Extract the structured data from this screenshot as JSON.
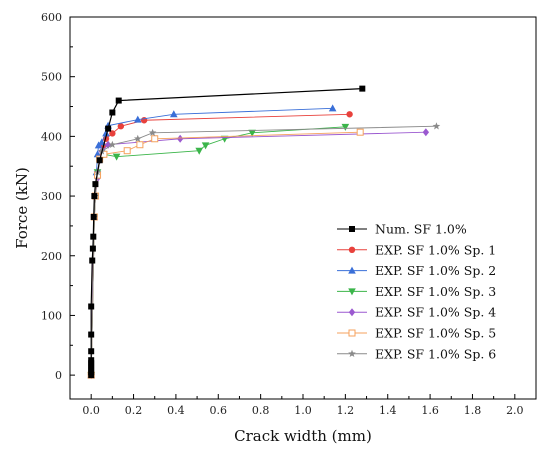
{
  "chart_data": {
    "type": "line",
    "xlabel": "Crack width (mm)",
    "ylabel": "Force (kN)",
    "xlim": [
      -0.1,
      2.1
    ],
    "ylim": [
      -40,
      600
    ],
    "xticks": [
      "0.0",
      "0.2",
      "0.4",
      "0.6",
      "0.8",
      "1.0",
      "1.2",
      "1.4",
      "1.6",
      "1.8",
      "2.0"
    ],
    "yticks": [
      "0",
      "100",
      "200",
      "300",
      "400",
      "500",
      "600"
    ],
    "legend_position": "bottom-right",
    "grid": false,
    "series": [
      {
        "name": "Num. SF 1.0%",
        "color": "#000000",
        "marker": "square",
        "points": [
          [
            0,
            0
          ],
          [
            0,
            5
          ],
          [
            0,
            10
          ],
          [
            0,
            15
          ],
          [
            0,
            20
          ],
          [
            0,
            25
          ],
          [
            0,
            40
          ],
          [
            0,
            68
          ],
          [
            0,
            115
          ],
          [
            0.005,
            192
          ],
          [
            0.008,
            212
          ],
          [
            0.01,
            232
          ],
          [
            0.012,
            265
          ],
          [
            0.015,
            300
          ],
          [
            0.02,
            320
          ],
          [
            0.04,
            360
          ],
          [
            0.08,
            413
          ],
          [
            0.1,
            440
          ],
          [
            0.13,
            460
          ],
          [
            1.28,
            480
          ]
        ]
      },
      {
        "name": "EXP. SF 1.0% Sp. 1",
        "color": "#e8413c",
        "marker": "circle",
        "points": [
          [
            0,
            0
          ],
          [
            0.015,
            265
          ],
          [
            0.02,
            300
          ],
          [
            0.03,
            335
          ],
          [
            0.04,
            365
          ],
          [
            0.055,
            385
          ],
          [
            0.07,
            396
          ],
          [
            0.1,
            405
          ],
          [
            0.14,
            417
          ],
          [
            0.25,
            427
          ],
          [
            1.22,
            437
          ]
        ]
      },
      {
        "name": "EXP. SF 1.0% Sp. 2",
        "color": "#3a6fd8",
        "marker": "triangle-up",
        "points": [
          [
            0,
            0
          ],
          [
            0.015,
            265
          ],
          [
            0.02,
            300
          ],
          [
            0.025,
            340
          ],
          [
            0.03,
            370
          ],
          [
            0.035,
            385
          ],
          [
            0.05,
            390
          ],
          [
            0.07,
            405
          ],
          [
            0.08,
            418
          ],
          [
            0.22,
            428
          ],
          [
            0.39,
            437
          ],
          [
            1.14,
            447
          ]
        ]
      },
      {
        "name": "EXP. SF 1.0% Sp. 3",
        "color": "#3bb54a",
        "marker": "triangle-down",
        "points": [
          [
            0,
            0
          ],
          [
            0.015,
            265
          ],
          [
            0.02,
            300
          ],
          [
            0.03,
            340
          ],
          [
            0.04,
            360
          ],
          [
            0.06,
            370
          ],
          [
            0.12,
            366
          ],
          [
            0.51,
            376
          ],
          [
            0.54,
            385
          ],
          [
            0.63,
            396
          ],
          [
            0.76,
            406
          ],
          [
            1.2,
            416
          ]
        ]
      },
      {
        "name": "EXP. SF 1.0% Sp. 4",
        "color": "#9b59d0",
        "marker": "diamond",
        "points": [
          [
            0,
            0
          ],
          [
            0.012,
            265
          ],
          [
            0.02,
            300
          ],
          [
            0.03,
            330
          ],
          [
            0.04,
            360
          ],
          [
            0.05,
            375
          ],
          [
            0.08,
            386
          ],
          [
            0.42,
            396
          ],
          [
            1.58,
            407
          ]
        ]
      },
      {
        "name": "EXP. SF 1.0% Sp. 5",
        "color": "#f5a25d",
        "marker": "square-open",
        "points": [
          [
            0,
            0
          ],
          [
            0.015,
            265
          ],
          [
            0.02,
            300
          ],
          [
            0.03,
            335
          ],
          [
            0.04,
            362
          ],
          [
            0.06,
            370
          ],
          [
            0.17,
            376
          ],
          [
            0.23,
            386
          ],
          [
            0.3,
            396
          ],
          [
            1.27,
            407
          ]
        ]
      },
      {
        "name": "EXP. SF 1.0% Sp. 6",
        "color": "#8a8a8a",
        "marker": "star",
        "points": [
          [
            0,
            0
          ],
          [
            0.015,
            265
          ],
          [
            0.02,
            300
          ],
          [
            0.03,
            340
          ],
          [
            0.05,
            375
          ],
          [
            0.1,
            386
          ],
          [
            0.22,
            396
          ],
          [
            0.29,
            406
          ],
          [
            1.63,
            417
          ]
        ]
      }
    ]
  }
}
